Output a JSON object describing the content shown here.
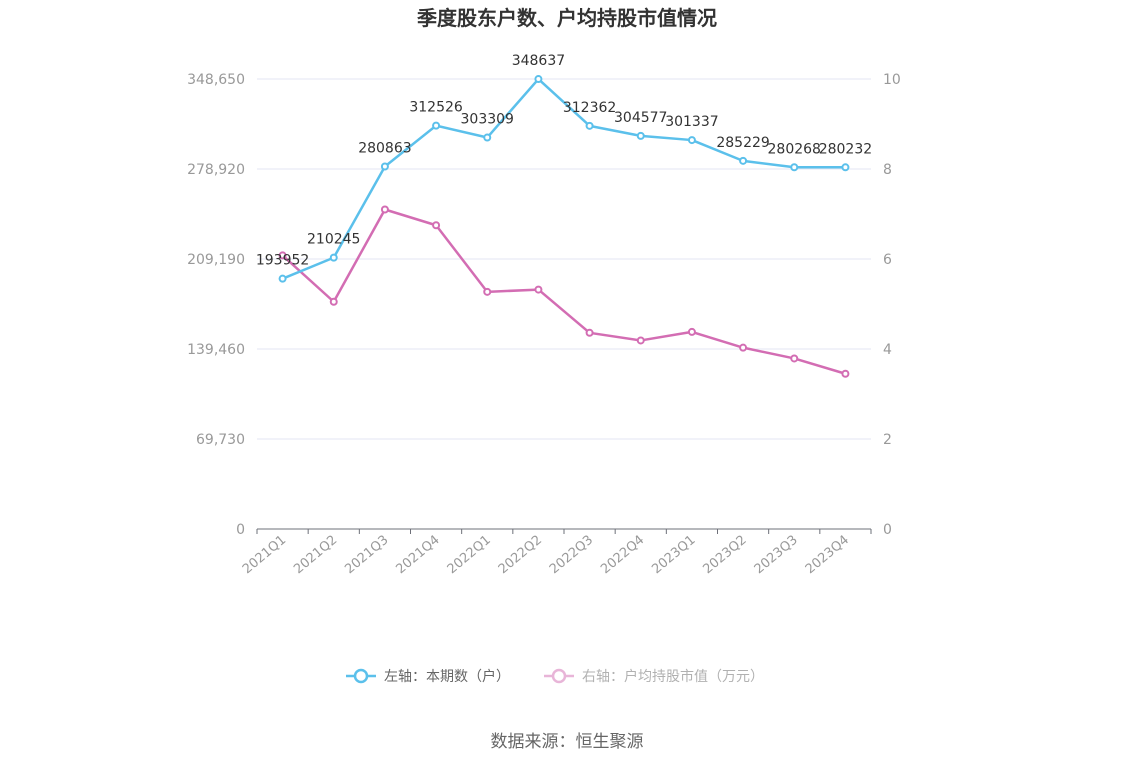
{
  "chart_data": {
    "type": "line",
    "title": "季度股东户数、户均持股市值情况",
    "categories": [
      "2021Q1",
      "2021Q2",
      "2021Q3",
      "2021Q4",
      "2022Q1",
      "2022Q2",
      "2022Q3",
      "2022Q4",
      "2023Q1",
      "2023Q2",
      "2023Q3",
      "2023Q4"
    ],
    "series": [
      {
        "name": "左轴：本期数（户）",
        "axis": "left",
        "color": "#5bc0eb",
        "values": [
          193952,
          210245,
          280863,
          312526,
          303309,
          348637,
          312362,
          304577,
          301337,
          285229,
          280268,
          280232
        ],
        "labels": [
          "193952",
          "210245",
          "280863",
          "312526",
          "303309",
          "348637",
          "312362",
          "304577",
          "301337",
          "285229",
          "280268",
          "280232"
        ]
      },
      {
        "name": "右轴：户均持股市值（万元）",
        "axis": "right",
        "color": "#d36db3",
        "values": [
          6.08,
          5.05,
          7.1,
          6.75,
          5.27,
          5.32,
          4.36,
          4.19,
          4.38,
          4.03,
          3.79,
          3.45
        ]
      }
    ],
    "left_axis": {
      "ylim": [
        0,
        348650
      ],
      "ticks": [
        0,
        69730,
        139460,
        209190,
        278920,
        348650
      ],
      "tick_labels": [
        "0",
        "69,730",
        "139,460",
        "209,190",
        "278,920",
        "348,650"
      ]
    },
    "right_axis": {
      "ylim": [
        0,
        10
      ],
      "ticks": [
        0,
        2,
        4,
        6,
        8,
        10
      ],
      "tick_labels": [
        "0",
        "2",
        "4",
        "6",
        "8",
        "10"
      ]
    },
    "grid": true,
    "legend_position": "bottom"
  },
  "source": "数据来源：恒生聚源"
}
